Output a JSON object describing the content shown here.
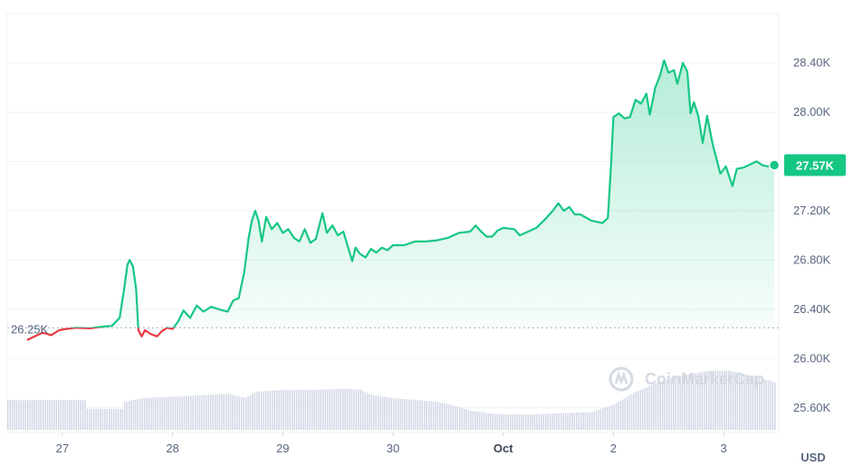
{
  "chart_data": {
    "type": "area",
    "currency_label": "USD",
    "watermark": "CoinMarketCap",
    "current_price_label": "27.57K",
    "current_price": 27570,
    "reference_label": "26.25K",
    "reference_price": 26250,
    "ylim": [
      25400,
      28800
    ],
    "y_ticks": [
      {
        "value": 28400,
        "label": "28.40K"
      },
      {
        "value": 28000,
        "label": "28.00K"
      },
      {
        "value": 27600,
        "label": "27.60K"
      },
      {
        "value": 27200,
        "label": "27.20K"
      },
      {
        "value": 26800,
        "label": "26.80K"
      },
      {
        "value": 26400,
        "label": "26.40K"
      },
      {
        "value": 26000,
        "label": "26.00K"
      },
      {
        "value": 25600,
        "label": "25.60K"
      }
    ],
    "x_ticks": [
      {
        "day": 0,
        "label": "27",
        "bold": false
      },
      {
        "day": 1,
        "label": "28",
        "bold": false
      },
      {
        "day": 2,
        "label": "29",
        "bold": false
      },
      {
        "day": 3,
        "label": "30",
        "bold": false
      },
      {
        "day": 4,
        "label": "Oct",
        "bold": true
      },
      {
        "day": 5,
        "label": "2",
        "bold": false
      },
      {
        "day": 6,
        "label": "3",
        "bold": false
      }
    ],
    "xlim": [
      -0.5,
      6.5
    ],
    "colors": {
      "up": "#16c784",
      "down": "#ea3943",
      "volume": "#cfd6e4",
      "grid": "#eff2f5"
    },
    "price_series": [
      [
        -0.32,
        26150
      ],
      [
        -0.25,
        26180
      ],
      [
        -0.18,
        26210
      ],
      [
        -0.1,
        26190
      ],
      [
        -0.03,
        26230
      ],
      [
        0.03,
        26240
      ],
      [
        0.12,
        26250
      ],
      [
        0.25,
        26245
      ],
      [
        0.38,
        26260
      ],
      [
        0.45,
        26265
      ],
      [
        0.52,
        26330
      ],
      [
        0.56,
        26560
      ],
      [
        0.59,
        26760
      ],
      [
        0.61,
        26800
      ],
      [
        0.64,
        26750
      ],
      [
        0.67,
        26560
      ],
      [
        0.69,
        26230
      ],
      [
        0.72,
        26180
      ],
      [
        0.75,
        26230
      ],
      [
        0.8,
        26200
      ],
      [
        0.86,
        26180
      ],
      [
        0.9,
        26220
      ],
      [
        0.95,
        26250
      ],
      [
        1.0,
        26240
      ],
      [
        1.05,
        26300
      ],
      [
        1.1,
        26390
      ],
      [
        1.16,
        26330
      ],
      [
        1.22,
        26430
      ],
      [
        1.28,
        26380
      ],
      [
        1.35,
        26420
      ],
      [
        1.42,
        26400
      ],
      [
        1.5,
        26380
      ],
      [
        1.55,
        26470
      ],
      [
        1.6,
        26490
      ],
      [
        1.65,
        26700
      ],
      [
        1.69,
        26980
      ],
      [
        1.72,
        27120
      ],
      [
        1.75,
        27200
      ],
      [
        1.78,
        27120
      ],
      [
        1.81,
        26950
      ],
      [
        1.85,
        27150
      ],
      [
        1.9,
        27050
      ],
      [
        1.95,
        27100
      ],
      [
        2.0,
        27020
      ],
      [
        2.05,
        27050
      ],
      [
        2.1,
        26980
      ],
      [
        2.15,
        26950
      ],
      [
        2.2,
        27050
      ],
      [
        2.25,
        26940
      ],
      [
        2.3,
        26970
      ],
      [
        2.36,
        27180
      ],
      [
        2.4,
        27020
      ],
      [
        2.45,
        27080
      ],
      [
        2.5,
        27000
      ],
      [
        2.55,
        27030
      ],
      [
        2.6,
        26880
      ],
      [
        2.63,
        26790
      ],
      [
        2.66,
        26900
      ],
      [
        2.7,
        26850
      ],
      [
        2.75,
        26820
      ],
      [
        2.8,
        26890
      ],
      [
        2.85,
        26860
      ],
      [
        2.9,
        26900
      ],
      [
        2.95,
        26880
      ],
      [
        3.0,
        26920
      ],
      [
        3.1,
        26920
      ],
      [
        3.2,
        26950
      ],
      [
        3.3,
        26950
      ],
      [
        3.4,
        26960
      ],
      [
        3.5,
        26980
      ],
      [
        3.6,
        27020
      ],
      [
        3.7,
        27030
      ],
      [
        3.75,
        27080
      ],
      [
        3.8,
        27030
      ],
      [
        3.85,
        26990
      ],
      [
        3.9,
        26990
      ],
      [
        3.95,
        27040
      ],
      [
        4.0,
        27060
      ],
      [
        4.1,
        27050
      ],
      [
        4.15,
        27000
      ],
      [
        4.2,
        27020
      ],
      [
        4.3,
        27060
      ],
      [
        4.38,
        27130
      ],
      [
        4.45,
        27200
      ],
      [
        4.5,
        27260
      ],
      [
        4.55,
        27200
      ],
      [
        4.6,
        27230
      ],
      [
        4.65,
        27170
      ],
      [
        4.7,
        27170
      ],
      [
        4.8,
        27120
      ],
      [
        4.9,
        27100
      ],
      [
        4.95,
        27140
      ],
      [
        4.98,
        27600
      ],
      [
        5.0,
        27960
      ],
      [
        5.05,
        27990
      ],
      [
        5.1,
        27950
      ],
      [
        5.15,
        27960
      ],
      [
        5.2,
        28100
      ],
      [
        5.25,
        28070
      ],
      [
        5.3,
        28150
      ],
      [
        5.33,
        27980
      ],
      [
        5.38,
        28200
      ],
      [
        5.42,
        28290
      ],
      [
        5.46,
        28420
      ],
      [
        5.5,
        28320
      ],
      [
        5.55,
        28340
      ],
      [
        5.58,
        28230
      ],
      [
        5.63,
        28400
      ],
      [
        5.67,
        28330
      ],
      [
        5.7,
        27990
      ],
      [
        5.73,
        28080
      ],
      [
        5.77,
        27970
      ],
      [
        5.81,
        27750
      ],
      [
        5.85,
        27970
      ],
      [
        5.9,
        27740
      ],
      [
        5.93,
        27640
      ],
      [
        5.97,
        27500
      ],
      [
        6.02,
        27560
      ],
      [
        6.08,
        27400
      ],
      [
        6.12,
        27540
      ],
      [
        6.18,
        27550
      ],
      [
        6.25,
        27580
      ],
      [
        6.3,
        27600
      ],
      [
        6.35,
        27570
      ],
      [
        6.4,
        27560
      ],
      [
        6.46,
        27570
      ]
    ],
    "volume_series": [
      [
        -0.5,
        0.47
      ],
      [
        0.0,
        0.47
      ],
      [
        0.2,
        0.47
      ],
      [
        0.21,
        0.33
      ],
      [
        0.55,
        0.33
      ],
      [
        0.56,
        0.44
      ],
      [
        0.72,
        0.5
      ],
      [
        1.1,
        0.53
      ],
      [
        1.3,
        0.55
      ],
      [
        1.5,
        0.57
      ],
      [
        1.65,
        0.5
      ],
      [
        1.75,
        0.6
      ],
      [
        2.0,
        0.63
      ],
      [
        2.3,
        0.63
      ],
      [
        2.55,
        0.65
      ],
      [
        2.7,
        0.63
      ],
      [
        2.8,
        0.55
      ],
      [
        3.0,
        0.5
      ],
      [
        3.4,
        0.44
      ],
      [
        3.55,
        0.38
      ],
      [
        3.7,
        0.3
      ],
      [
        3.9,
        0.25
      ],
      [
        4.2,
        0.24
      ],
      [
        4.5,
        0.26
      ],
      [
        4.8,
        0.28
      ],
      [
        5.0,
        0.4
      ],
      [
        5.2,
        0.6
      ],
      [
        5.4,
        0.75
      ],
      [
        5.6,
        0.85
      ],
      [
        5.85,
        0.93
      ],
      [
        6.05,
        0.93
      ],
      [
        6.3,
        0.83
      ],
      [
        6.46,
        0.75
      ]
    ]
  }
}
